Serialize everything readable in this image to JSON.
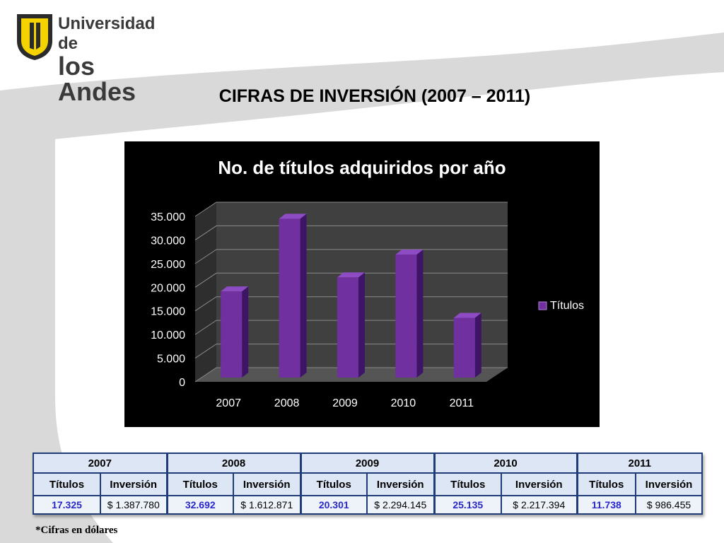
{
  "logo": {
    "line1": "Universidad de",
    "line2": "los Andes"
  },
  "slide_title": "CIFRAS DE INVERSIÓN (2007 – 2011)",
  "chart_data": {
    "type": "bar",
    "title": "No. de títulos adquiridos por año",
    "categories": [
      "2007",
      "2008",
      "2009",
      "2010",
      "2011"
    ],
    "series": [
      {
        "name": "Títulos",
        "values": [
          17325,
          32692,
          20301,
          25135,
          11738
        ],
        "color": "#7030a0"
      }
    ],
    "yticks": [
      "0",
      "5.000",
      "10.000",
      "15.000",
      "20.000",
      "25.000",
      "30.000",
      "35.000"
    ],
    "ylim": [
      0,
      35000
    ],
    "grid": true,
    "style": "3d-column",
    "legend_position": "right",
    "background": "#000000",
    "text_color": "#ffffff"
  },
  "table": {
    "years": [
      "2007",
      "2008",
      "2009",
      "2010",
      "2011"
    ],
    "col_titulos": "Títulos",
    "col_inversion": "Inversión",
    "rows": [
      {
        "titulos": "17.325",
        "inversion": "$ 1.387.780"
      },
      {
        "titulos": "32.692",
        "inversion": "$ 1.612.871"
      },
      {
        "titulos": "20.301",
        "inversion": "$ 2.294.145"
      },
      {
        "titulos": "25.135",
        "inversion": "$ 2.217.394"
      },
      {
        "titulos": "11.738",
        "inversion": "$ 986.455"
      }
    ]
  },
  "footnote": "*Cifras en dólares",
  "colors": {
    "accent_titles": "#2828c8",
    "table_border": "#1f3c78",
    "logo_yellow": "#f5d300"
  }
}
